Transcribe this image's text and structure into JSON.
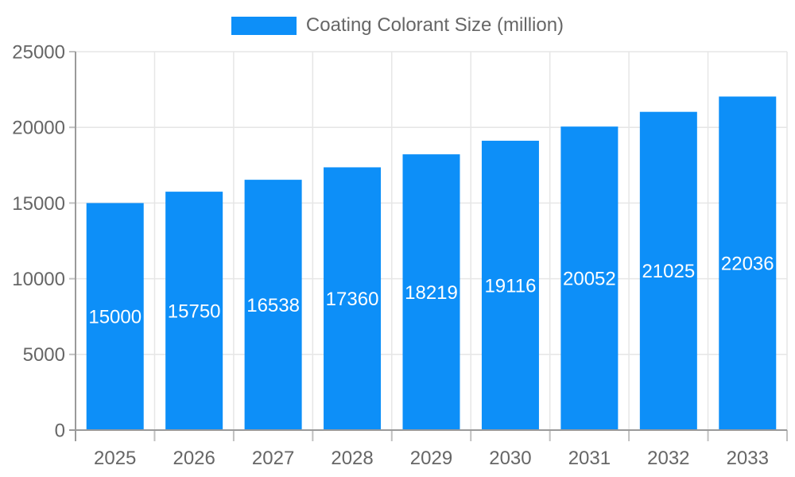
{
  "legend": {
    "label": "Coating Colorant Size (million)"
  },
  "colors": {
    "bar": "#0d8ff8",
    "bar_label_text": "#ffffff",
    "grid": "#e6e6e6",
    "axis": "#9a9a9a",
    "tick_mark": "#c0c0c0",
    "tick_text": "#666666",
    "background": "#ffffff"
  },
  "chart_data": {
    "type": "bar",
    "title": "Coating Colorant Size (million)",
    "categories": [
      "2025",
      "2026",
      "2027",
      "2028",
      "2029",
      "2030",
      "2031",
      "2032",
      "2033"
    ],
    "values": [
      15000,
      15750,
      16538,
      17360,
      18219,
      19116,
      20052,
      21025,
      22036
    ],
    "xlabel": "",
    "ylabel": "",
    "ylim": [
      0,
      25000
    ],
    "yticks": [
      0,
      5000,
      10000,
      15000,
      20000,
      25000
    ],
    "grid": true,
    "legend_position": "top-center",
    "value_labels": "inside-middle"
  }
}
